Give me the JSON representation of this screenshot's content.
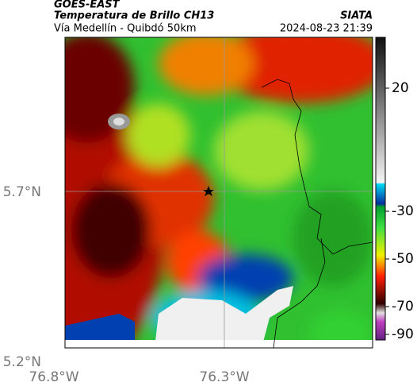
{
  "header": {
    "title": "GOES-EAST",
    "subtitle": "Temperatura de Brillo CH13",
    "location": "Vía Medellín - Quibdó 50km",
    "source": "SIATA",
    "datetime": "2024-08-23 21:39"
  },
  "map": {
    "lat_labels": [
      "5.7°N",
      "5.2°N"
    ],
    "lon_labels": [
      "76.8°W",
      "76.3°W"
    ]
  },
  "colorbar": {
    "ticks": [
      "20",
      "-30",
      "-50",
      "-70",
      "-90"
    ]
  }
}
